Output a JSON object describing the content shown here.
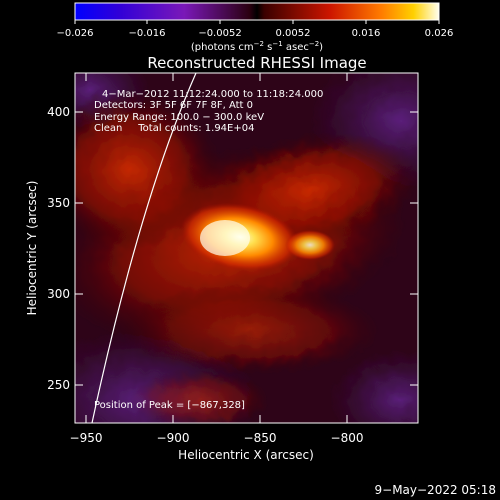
{
  "colorbar": {
    "tick_labels": [
      "−0.026",
      "−0.016",
      "−0.0052",
      "0.0052",
      "0.016",
      "0.026"
    ],
    "units_main": "(photons cm",
    "units_sup1": "−2",
    "units_mid1": " s",
    "units_sup2": "−1",
    "units_mid2": " asec",
    "units_sup3": "−2",
    "units_close": ")"
  },
  "plot": {
    "title": "Reconstructed RHESSI Image",
    "annotation_lines": [
      "4−Mar−2012 11:12:24.000 to 11:18:24.000",
      "Detectors: 3F 5F 6F 7F 8F, Att 0",
      "Energy Range: 100.0 − 300.0 keV",
      "Clean     Total counts: 1.94E+04"
    ],
    "peak_text": "Position of Peak = [−867,328]",
    "x_axis_label": "Heliocentric X (arcsec)",
    "y_axis_label": "Heliocentric Y (arcsec)",
    "x_tick_labels": [
      "−950",
      "−900",
      "−850",
      "−800"
    ],
    "y_tick_labels": [
      "400",
      "350",
      "300",
      "250"
    ]
  },
  "footer": {
    "timestamp": "9−May−2022 05:18"
  },
  "colors": {
    "background": "#000000",
    "text": "#ffffff",
    "limb": "#ffffff"
  }
}
